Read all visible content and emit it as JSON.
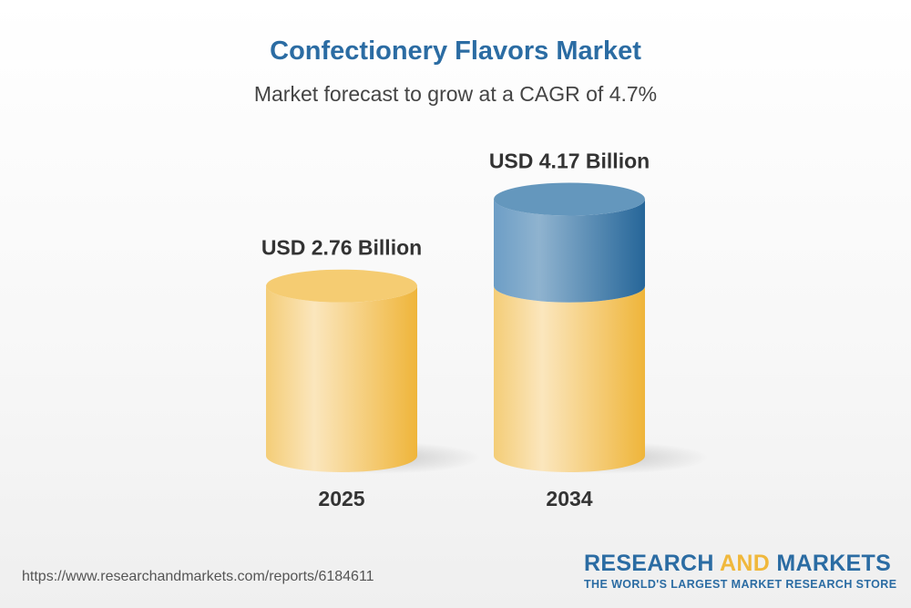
{
  "chart_data": {
    "type": "bar",
    "style": "3d-cylinder",
    "title": "Confectionery Flavors Market",
    "subtitle": "Market forecast to grow at a CAGR of 4.7%",
    "categories": [
      "2025",
      "2034"
    ],
    "values": [
      2.76,
      4.17
    ],
    "unit": "USD Billion",
    "data_labels": [
      "USD 2.76 Billion",
      "USD 4.17 Billion"
    ],
    "colors": {
      "base": "#f3c35a",
      "growth": "#2f6fa3"
    },
    "grid": false
  },
  "footer": {
    "url": "https://www.researchandmarkets.com/reports/6184611",
    "logo": {
      "word1": "RESEARCH",
      "word2": "AND",
      "word3": "MARKETS",
      "tagline": "THE WORLD'S LARGEST MARKET RESEARCH STORE"
    }
  }
}
